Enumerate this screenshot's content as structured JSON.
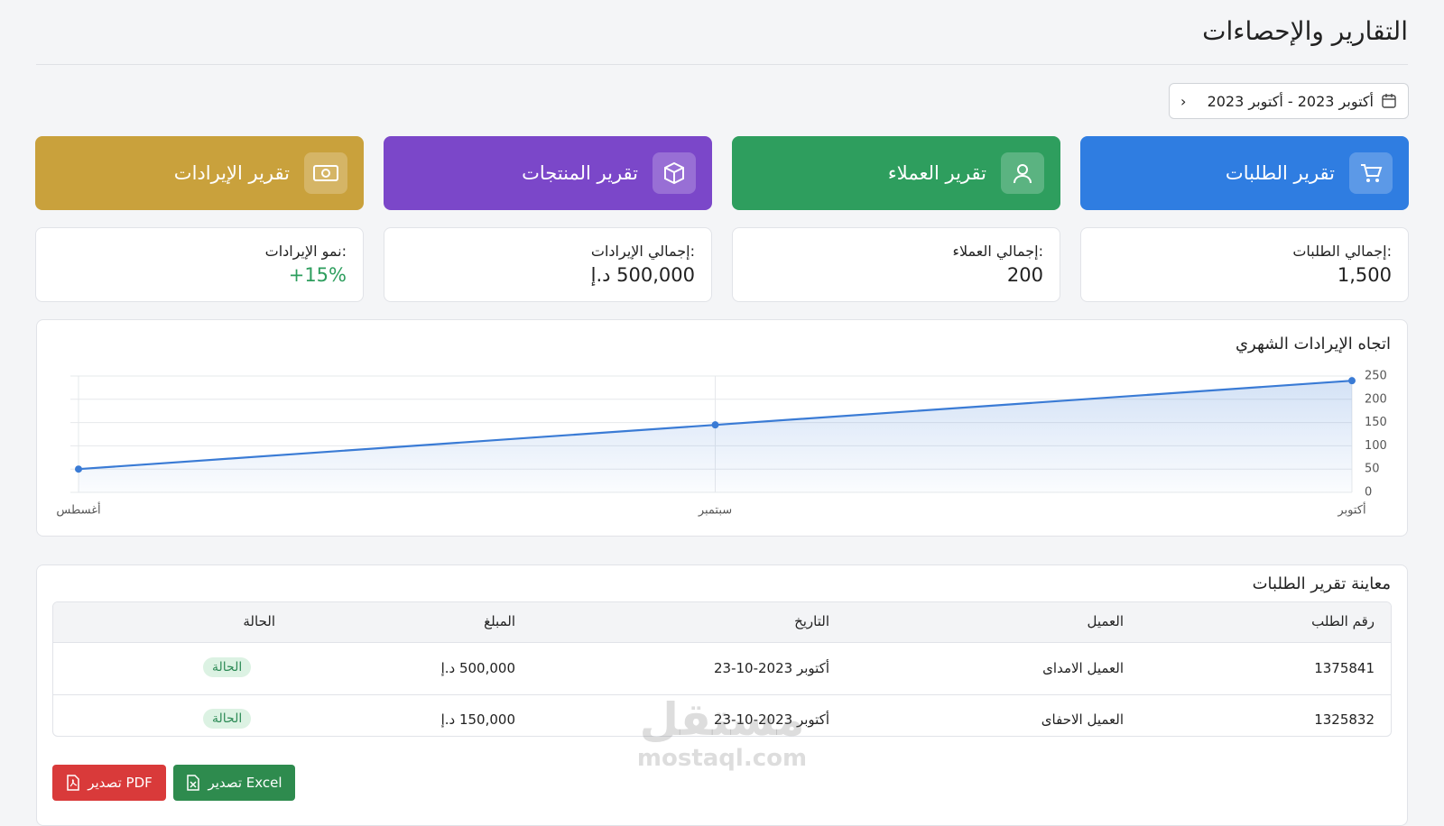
{
  "header": {
    "title": "التقارير والإحصاءات"
  },
  "date_range": "أكتوبر 2023 - أكتوبر 2023",
  "report_buttons": [
    "تقرير الطلبات",
    "تقرير العملاء",
    "تقرير المنتجات",
    "تقرير الإيرادات"
  ],
  "stats": [
    {
      "label": "إجمالي الطلبات:",
      "value": "1,500"
    },
    {
      "label": "إجمالي العملاء:",
      "value": "200"
    },
    {
      "label": "إجمالي الإيرادات:",
      "value": "500,000 د.إ"
    },
    {
      "label": "نمو الإيرادات:",
      "value": "+15%"
    }
  ],
  "chart_data": {
    "type": "line",
    "title": "اتجاه الإيرادات الشهري",
    "categories": [
      "أغسطس",
      "سبتمبر",
      "أكتوبر"
    ],
    "values": [
      50,
      145,
      240
    ],
    "color": "#3a7bd5",
    "ylim": [
      0,
      250
    ],
    "yticks": [
      0,
      50,
      100,
      150,
      200,
      250
    ],
    "grid": true
  },
  "table": {
    "title": "معاينة تقرير الطلبات",
    "headers": [
      "رقم الطلب",
      "العميل",
      "التاريخ",
      "المبلغ",
      "الحالة"
    ],
    "rows": [
      [
        "1375841",
        "العميل الامداى",
        "أكتوبر 2023-10-23",
        "500,000 د.إ",
        "الحالة"
      ],
      [
        "1325832",
        "العميل الاحفاى",
        "أكتوبر 2023-10-23",
        "150,000 د.إ",
        "الحالة"
      ]
    ]
  },
  "export_buttons": [
    "تصدير Excel",
    "تصدير PDF"
  ],
  "watermark": [
    "مستقل",
    "mostaql.com"
  ]
}
